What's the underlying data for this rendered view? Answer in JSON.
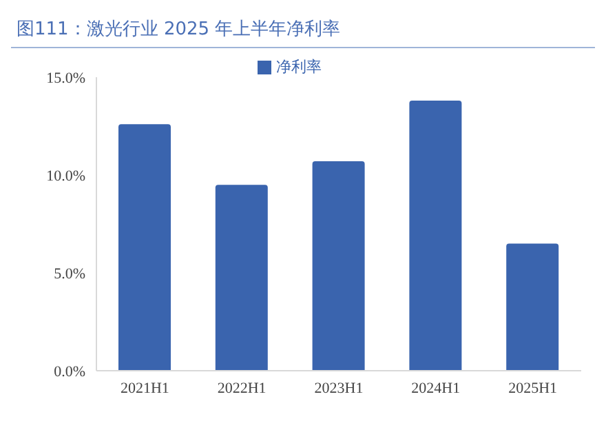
{
  "chart_data": {
    "type": "bar",
    "title": "图111：激光行业 2025 年上半年净利率",
    "categories": [
      "2021H1",
      "2022H1",
      "2023H1",
      "2024H1",
      "2025H1"
    ],
    "series": [
      {
        "name": "净利率",
        "color": "#3a64ae",
        "values": [
          12.6,
          9.5,
          10.7,
          13.8,
          6.5
        ]
      }
    ],
    "ylim": [
      0,
      15
    ],
    "yticks": [
      {
        "value": 0,
        "label": "0.0%"
      },
      {
        "value": 5,
        "label": "5.0%"
      },
      {
        "value": 10,
        "label": "10.0%"
      },
      {
        "value": 15,
        "label": "15.0%"
      }
    ],
    "grid": false,
    "legend": "top"
  }
}
